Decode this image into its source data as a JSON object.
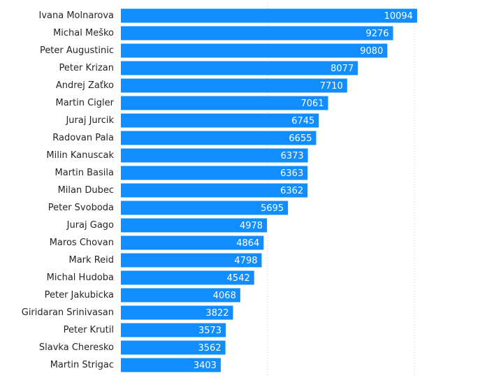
{
  "chart_data": {
    "type": "hbar",
    "categories": [
      "Ivana Molnarova",
      "Michal Meško",
      "Peter Augustinic",
      "Peter Krizan ",
      "Andrej Zaťko",
      "Martin Cigler",
      "Juraj Jurcik",
      "Radovan Pala",
      "Milin Kanuscak",
      "Martin Basila",
      "Milan Dubec",
      "Peter Svoboda",
      "Juraj Gago",
      "Maros Chovan",
      "Mark Reid",
      "Michal Hudoba",
      "Peter Jakubicka",
      "Giridaran Srinivasan",
      "Peter Krutil",
      "Slavka Cheresko",
      "Martin Strigac"
    ],
    "values": [
      10094,
      9276,
      9080,
      8077,
      7710,
      7061,
      6745,
      6655,
      6373,
      6363,
      6362,
      5695,
      4978,
      4864,
      4798,
      4542,
      4068,
      3822,
      3573,
      3562,
      3403
    ],
    "color": "#118dff",
    "xlim": [
      0,
      10100
    ],
    "xticks": [
      5000,
      10000
    ],
    "tick_labels": false,
    "grid": true
  }
}
